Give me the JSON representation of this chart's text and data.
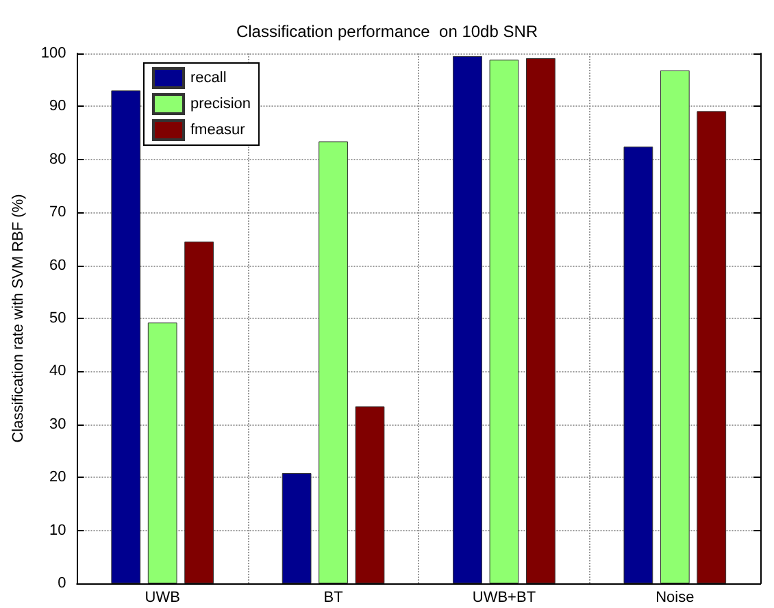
{
  "chart_data": {
    "type": "bar",
    "title": "Classification performance  on 10db SNR",
    "ylabel": "Classification rate with SVM RBF (%)",
    "categories": [
      "UWB",
      "BT",
      "UWB+BT",
      "Noise"
    ],
    "series": [
      {
        "name": "recall",
        "color": "#00008f",
        "values": [
          93,
          20.8,
          99.5,
          82.4
        ]
      },
      {
        "name": "precision",
        "color": "#8fff70",
        "values": [
          49.2,
          83.4,
          98.8,
          96.8
        ]
      },
      {
        "name": "fmeasur",
        "color": "#800000",
        "values": [
          64.5,
          33.4,
          99.1,
          89.1
        ]
      }
    ],
    "ylim": [
      0,
      100
    ],
    "yticks": [
      0,
      10,
      20,
      30,
      40,
      50,
      60,
      70,
      80,
      90,
      100
    ],
    "grid": true,
    "legend": "top left"
  }
}
